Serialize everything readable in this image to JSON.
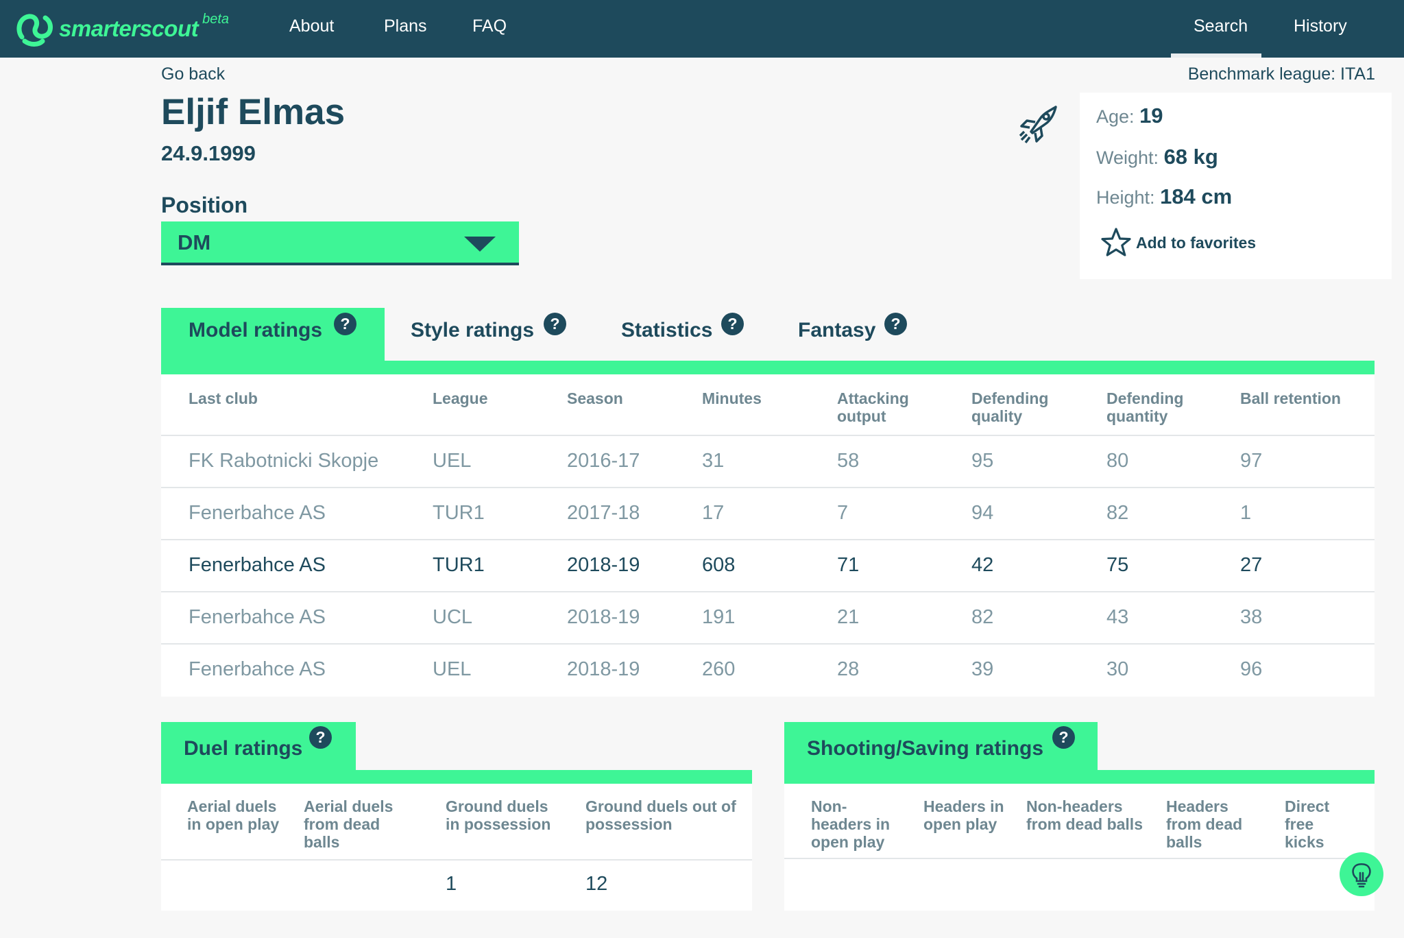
{
  "nav": {
    "logo_text": "smarterscout",
    "logo_beta": "beta",
    "links": [
      "About",
      "Plans",
      "FAQ"
    ],
    "right_links": [
      "Search",
      "History"
    ],
    "active": "Search"
  },
  "header": {
    "go_back": "Go back",
    "benchmark": "Benchmark league: ITA1",
    "name": "Eljif Elmas",
    "dob": "24.9.1999",
    "position_label": "Position",
    "position_value": "DM"
  },
  "info": {
    "age_label": "Age:",
    "age_value": "19",
    "weight_label": "Weight:",
    "weight_value": "68 kg",
    "height_label": "Height:",
    "height_value": "184 cm",
    "favorites": "Add to favorites"
  },
  "tabs": [
    {
      "label": "Model ratings",
      "help": "?"
    },
    {
      "label": "Style ratings",
      "help": "?"
    },
    {
      "label": "Statistics",
      "help": "?"
    },
    {
      "label": "Fantasy",
      "help": "?"
    }
  ],
  "model_table": {
    "headers": [
      "Last club",
      "League",
      "Season",
      "Minutes",
      "Attacking output",
      "Defending quality",
      "Defending quantity",
      "Ball retention"
    ],
    "rows": [
      [
        "FK Rabotnicki Skopje",
        "UEL",
        "2016-17",
        "31",
        "58",
        "95",
        "80",
        "97"
      ],
      [
        "Fenerbahce AS",
        "TUR1",
        "2017-18",
        "17",
        "7",
        "94",
        "82",
        "1"
      ],
      [
        "Fenerbahce AS",
        "TUR1",
        "2018-19",
        "608",
        "71",
        "42",
        "75",
        "27"
      ],
      [
        "Fenerbahce AS",
        "UCL",
        "2018-19",
        "191",
        "21",
        "82",
        "43",
        "38"
      ],
      [
        "Fenerbahce AS",
        "UEL",
        "2018-19",
        "260",
        "28",
        "39",
        "30",
        "96"
      ]
    ]
  },
  "duel_panel": {
    "title": "Duel ratings",
    "help": "?",
    "headers": [
      "Aerial duels in open play",
      "Aerial duels from dead balls",
      "Ground duels in possession",
      "Ground duels out of possession"
    ],
    "values": [
      "",
      "",
      "1",
      "12"
    ]
  },
  "shooting_panel": {
    "title": "Shooting/Saving ratings",
    "help": "?",
    "headers": [
      "Non-headers in open play",
      "Headers in open play",
      "Non-headers from dead balls",
      "Headers from dead balls",
      "Direct free kicks"
    ]
  },
  "colors": {
    "navy": "#1e4a5c",
    "accent_green": "#3ef596",
    "muted": "#7f98a2"
  },
  "icons": [
    "rocket-icon",
    "star-icon",
    "help-icon",
    "lightbulb-icon",
    "caret-down-icon"
  ]
}
